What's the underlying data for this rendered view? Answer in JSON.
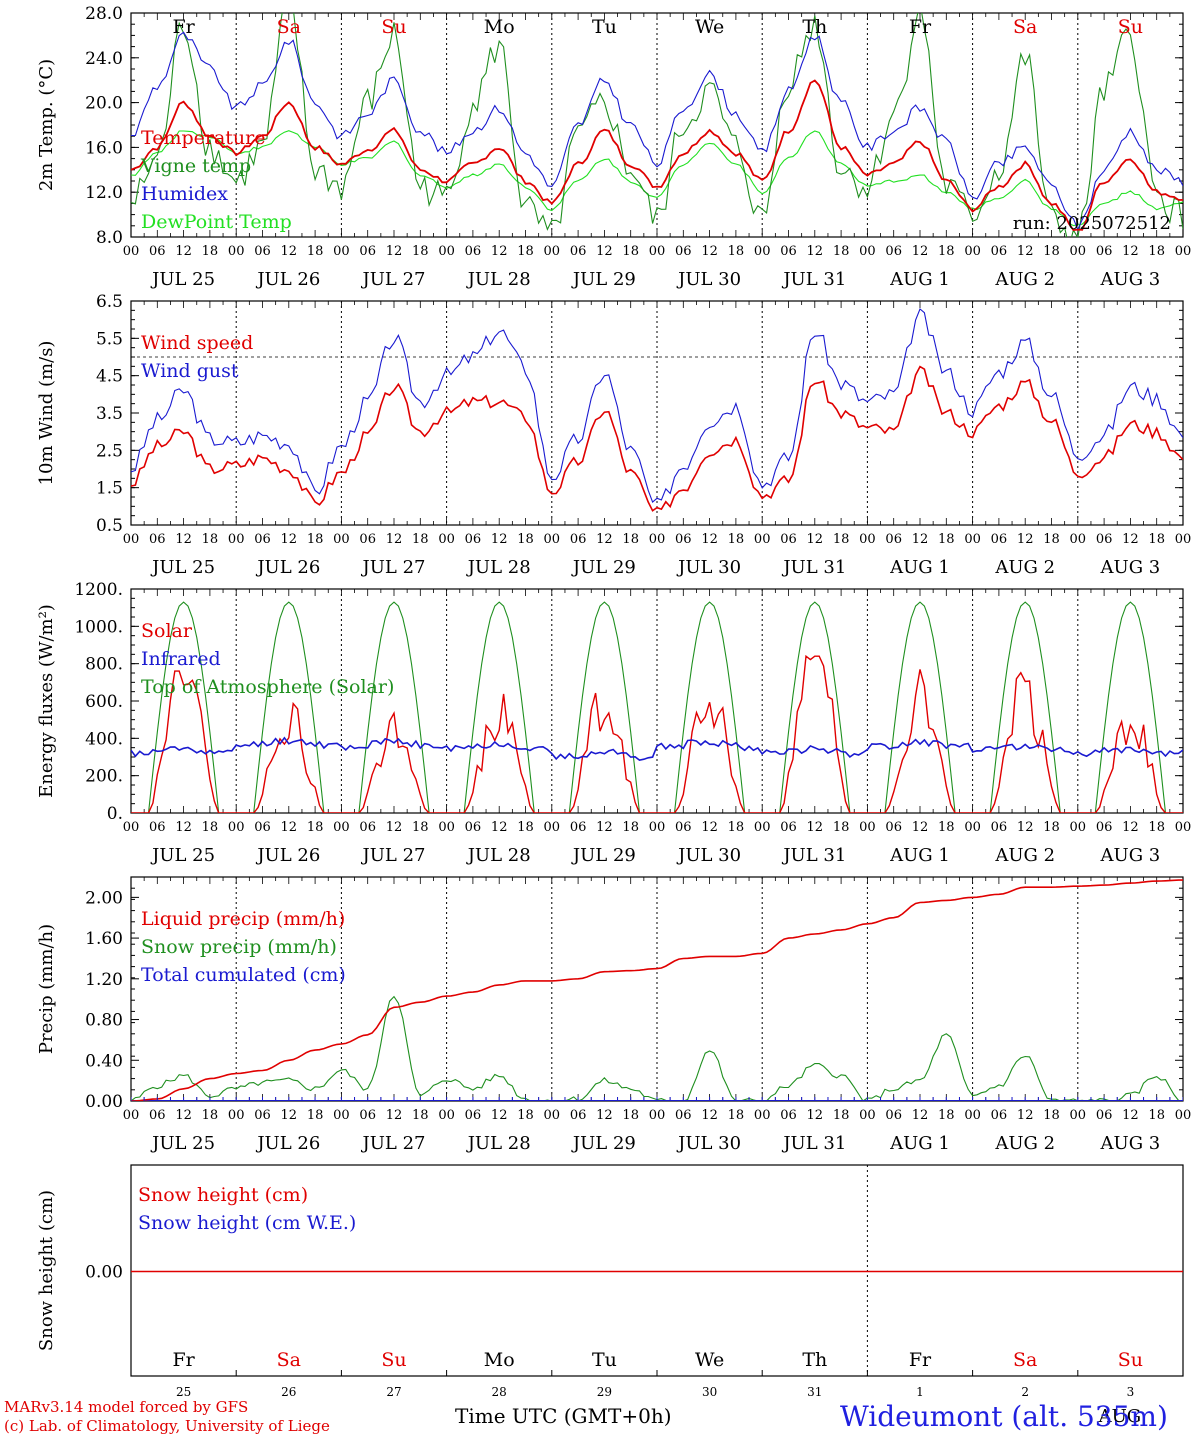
{
  "station": "Wideumont (alt. 535m)",
  "run_label": "run: 2025072512",
  "footer": {
    "model": "MARv3.14 model forced by GFS",
    "lab": "(c) Lab. of Climatology, University of Liege",
    "xlabel": "Time UTC (GMT+0h)"
  },
  "colors": {
    "temperature": "#e00000",
    "vigne": "#1f8f1f",
    "humidex": "#1a1ad0",
    "dewpoint": "#22e022",
    "weekday": "#000000",
    "weekend": "#e00000"
  },
  "day_names": [
    "Fr",
    "Sa",
    "Su",
    "Mo",
    "Tu",
    "We",
    "Th",
    "Fr",
    "Sa",
    "Su"
  ],
  "weekend_flags": [
    false,
    true,
    true,
    false,
    false,
    false,
    false,
    false,
    true,
    true
  ],
  "date_labels": [
    "JUL 25",
    "JUL 26",
    "JUL 27",
    "JUL 28",
    "JUL 29",
    "JUL 30",
    "JUL 31",
    "AUG  1",
    "AUG  2",
    "AUG  3"
  ],
  "day_numbers": [
    "25",
    "26",
    "27",
    "28",
    "29",
    "30",
    "31",
    "1",
    "2",
    "3"
  ],
  "month_bottom": "AUG",
  "hour_ticks": [
    "00",
    "06",
    "12",
    "18"
  ],
  "hour_end": "00",
  "chart_data": [
    {
      "type": "line",
      "ylabel": "2m Temp. (°C)",
      "ylim": [
        8,
        28
      ],
      "yticks": [
        "8.0",
        "12.0",
        "16.0",
        "20.0",
        "24.0",
        "28.0"
      ],
      "legend": [
        "Temperature",
        "Vigne temp",
        "Humidex",
        "DewPoint Temp"
      ],
      "x_days": [
        0,
        0.25,
        0.5,
        0.75,
        1,
        1.25,
        1.5,
        1.75,
        2,
        2.25,
        2.5,
        2.75,
        3,
        3.25,
        3.5,
        3.75,
        4,
        4.25,
        4.5,
        4.75,
        5,
        5.25,
        5.5,
        5.75,
        6,
        6.25,
        6.5,
        6.75,
        7,
        7.25,
        7.5,
        7.75,
        8,
        8.25,
        8.5,
        8.75,
        9,
        9.25,
        9.5,
        9.75,
        10
      ],
      "series": [
        {
          "name": "Temperature",
          "values": [
            14.0,
            16.0,
            20.0,
            17.0,
            15.5,
            17.0,
            20.0,
            16.0,
            14.5,
            15.8,
            17.5,
            14.0,
            13.0,
            14.5,
            16.0,
            13.0,
            11.0,
            14.5,
            17.5,
            14.5,
            12.5,
            15.5,
            17.5,
            15.5,
            13.0,
            17.5,
            22.0,
            16.0,
            13.5,
            14.5,
            16.5,
            13.0,
            10.5,
            12.5,
            14.5,
            11.0,
            8.5,
            13.0,
            15.0,
            12.0,
            11.5
          ]
        },
        {
          "name": "Vigne temp",
          "values": [
            11.0,
            15.0,
            27.0,
            16.0,
            13.0,
            16.0,
            29.0,
            14.0,
            12.5,
            20.0,
            26.0,
            12.5,
            11.5,
            20.0,
            25.0,
            10.5,
            8.0,
            17.0,
            20.0,
            14.0,
            9.5,
            18.0,
            21.0,
            16.0,
            9.5,
            22.0,
            27.0,
            14.0,
            12.5,
            19.0,
            28.0,
            12.5,
            10.0,
            14.0,
            24.0,
            9.5,
            8.0,
            21.0,
            26.0,
            11.5,
            10.0
          ]
        },
        {
          "name": "Humidex",
          "values": [
            17.0,
            21.5,
            26.0,
            23.0,
            19.5,
            21.5,
            25.5,
            20.0,
            17.0,
            19.0,
            22.0,
            17.5,
            15.5,
            17.5,
            19.5,
            15.5,
            12.5,
            18.0,
            22.0,
            18.0,
            14.5,
            19.5,
            22.5,
            19.0,
            15.5,
            21.0,
            26.0,
            20.0,
            16.0,
            17.5,
            19.5,
            16.5,
            11.5,
            14.5,
            16.0,
            12.5,
            9.0,
            14.0,
            17.5,
            14.0,
            13.0
          ]
        },
        {
          "name": "DewPoint Temp",
          "values": [
            13.5,
            15.5,
            17.5,
            17.0,
            15.5,
            16.0,
            17.5,
            16.0,
            14.5,
            15.0,
            16.5,
            13.5,
            12.5,
            13.5,
            14.5,
            12.5,
            10.5,
            13.0,
            15.0,
            13.0,
            11.5,
            14.5,
            16.5,
            14.5,
            12.0,
            15.0,
            17.5,
            14.5,
            12.5,
            13.0,
            13.5,
            12.0,
            10.5,
            11.5,
            13.0,
            10.5,
            9.0,
            11.0,
            12.0,
            10.5,
            11.0
          ]
        }
      ],
      "colors": [
        "#e00000",
        "#1f8f1f",
        "#1a1ad0",
        "#22e022"
      ]
    },
    {
      "type": "line",
      "ylabel": "10m Wind (m/s)",
      "ylim": [
        0.5,
        6.5
      ],
      "yticks": [
        "0.5",
        "1.5",
        "2.5",
        "3.5",
        "4.5",
        "5.5",
        "6.5"
      ],
      "ref_line": 5.0,
      "legend": [
        "Wind speed",
        "Wind gust"
      ],
      "x_days": [
        0,
        0.25,
        0.5,
        0.75,
        1,
        1.25,
        1.5,
        1.75,
        2,
        2.25,
        2.5,
        2.75,
        3,
        3.25,
        3.5,
        3.75,
        4,
        4.25,
        4.5,
        4.75,
        5,
        5.25,
        5.5,
        5.75,
        6,
        6.25,
        6.5,
        6.75,
        7,
        7.25,
        7.5,
        7.75,
        8,
        8.25,
        8.5,
        8.75,
        9,
        9.25,
        9.5,
        9.75,
        10
      ],
      "series": [
        {
          "name": "Wind speed",
          "values": [
            1.6,
            2.6,
            3.0,
            2.0,
            2.1,
            2.3,
            2.0,
            1.1,
            1.9,
            2.9,
            4.2,
            3.0,
            3.5,
            3.8,
            3.8,
            3.4,
            1.4,
            2.2,
            3.6,
            1.9,
            0.8,
            1.5,
            2.5,
            2.8,
            1.3,
            1.7,
            4.4,
            3.5,
            3.1,
            3.0,
            4.6,
            3.5,
            3.0,
            3.7,
            4.3,
            3.3,
            1.9,
            2.3,
            3.2,
            3.0,
            2.3
          ]
        },
        {
          "name": "Wind gust",
          "values": [
            2.0,
            3.3,
            4.1,
            2.8,
            2.7,
            2.9,
            2.7,
            1.4,
            2.6,
            3.8,
            5.5,
            3.8,
            4.5,
            5.0,
            5.7,
            4.7,
            1.8,
            2.8,
            4.6,
            2.5,
            1.0,
            2.1,
            3.3,
            3.7,
            1.6,
            2.3,
            5.7,
            4.3,
            3.8,
            4.0,
            6.1,
            4.6,
            3.6,
            4.6,
            5.4,
            4.0,
            2.4,
            2.9,
            4.2,
            3.9,
            2.9
          ]
        }
      ],
      "colors": [
        "#e00000",
        "#1a1ad0"
      ]
    },
    {
      "type": "line",
      "ylabel": "Energy fluxes (W/m²)",
      "ylim": [
        0,
        1200
      ],
      "yticks": [
        "0.",
        "200.",
        "400.",
        "600.",
        "800.",
        "1000.",
        "1200."
      ],
      "legend": [
        "Solar",
        "Infrared",
        "Top of Atmosphere (Solar)"
      ],
      "toa_peak": 1130,
      "toa_sunrise_hour": 4,
      "toa_sunset_hour": 20,
      "solar_peaks": [
        760,
        650,
        540,
        700,
        820,
        760,
        840,
        800,
        830,
        680
      ],
      "infrared_mean": [
        320,
        365,
        355,
        345,
        300,
        355,
        320,
        355,
        335,
        320
      ],
      "colors": [
        "#e00000",
        "#1a1ad0",
        "#1f8f1f"
      ]
    },
    {
      "type": "line",
      "ylabel": "Precip (mm/h)",
      "ylim": [
        0,
        2.2
      ],
      "yticks": [
        "0.00",
        "0.40",
        "0.80",
        "1.20",
        "1.60",
        "2.00"
      ],
      "legend": [
        "Liquid precip (mm/h)",
        "Snow precip (mm/h)",
        "Total cumulated (cm)"
      ],
      "x_days": [
        0,
        0.25,
        0.5,
        0.75,
        1,
        1.25,
        1.5,
        1.75,
        2,
        2.25,
        2.5,
        2.75,
        3,
        3.25,
        3.5,
        3.75,
        4,
        4.25,
        4.5,
        4.75,
        5,
        5.25,
        5.5,
        5.75,
        6,
        6.25,
        6.5,
        6.75,
        7,
        7.25,
        7.5,
        7.75,
        8,
        8.25,
        8.5,
        8.75,
        9,
        9.25,
        9.5,
        9.75,
        10
      ],
      "series": [
        {
          "name": "Total cumulated (cm)",
          "values": [
            0.0,
            0.02,
            0.12,
            0.22,
            0.27,
            0.3,
            0.4,
            0.5,
            0.56,
            0.65,
            0.92,
            0.97,
            1.03,
            1.07,
            1.14,
            1.18,
            1.18,
            1.2,
            1.27,
            1.28,
            1.3,
            1.4,
            1.42,
            1.42,
            1.45,
            1.6,
            1.64,
            1.68,
            1.74,
            1.8,
            1.95,
            1.97,
            2.0,
            2.03,
            2.1,
            2.1,
            2.11,
            2.12,
            2.14,
            2.16,
            2.17
          ]
        },
        {
          "name": "Liquid precip (mm/h)",
          "values": [
            0.0,
            0.15,
            0.25,
            0.05,
            0.12,
            0.18,
            0.2,
            0.12,
            0.3,
            0.12,
            1.05,
            0.05,
            0.22,
            0.12,
            0.25,
            0.02,
            0.0,
            0.02,
            0.2,
            0.12,
            0.0,
            0.0,
            0.5,
            0.0,
            0.0,
            0.15,
            0.35,
            0.25,
            0.0,
            0.12,
            0.2,
            0.65,
            0.05,
            0.15,
            0.45,
            0.0,
            0.0,
            0.0,
            0.05,
            0.25,
            0.0
          ]
        },
        {
          "name": "Snow precip (mm/h)",
          "values": [
            0,
            0,
            0,
            0,
            0,
            0,
            0,
            0,
            0,
            0,
            0,
            0,
            0,
            0,
            0,
            0,
            0,
            0,
            0,
            0,
            0,
            0,
            0,
            0,
            0,
            0,
            0,
            0,
            0,
            0,
            0,
            0,
            0,
            0,
            0,
            0,
            0,
            0,
            0,
            0,
            0
          ]
        }
      ],
      "colors": [
        "#e00000",
        "#1f8f1f",
        "#1a1ad0"
      ]
    },
    {
      "type": "line",
      "ylabel": "Snow height (cm)",
      "yticks": [
        "0.00"
      ],
      "legend": [
        "Snow height (cm)",
        "Snow height (cm W.E.)"
      ],
      "series": [
        {
          "name": "Snow height (cm)",
          "values": [
            0,
            0
          ]
        },
        {
          "name": "Snow height (cm W.E.)",
          "values": [
            0,
            0
          ]
        }
      ],
      "colors": [
        "#e00000",
        "#1a1ad0"
      ]
    }
  ]
}
